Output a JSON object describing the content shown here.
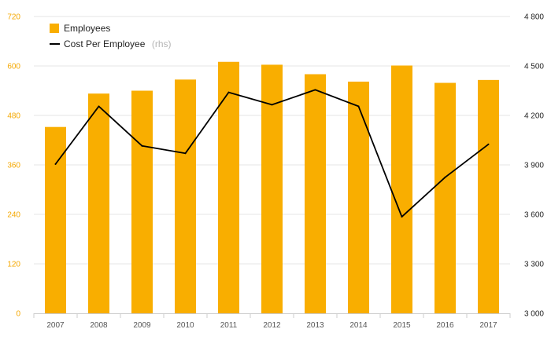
{
  "chart_data": {
    "type": "bar",
    "categories": [
      "2007",
      "2008",
      "2009",
      "2010",
      "2011",
      "2012",
      "2013",
      "2014",
      "2015",
      "2016",
      "2017"
    ],
    "series": [
      {
        "name": "Employees",
        "kind": "bar",
        "axis": "left",
        "color": "#f9ae00",
        "values": [
          452,
          533,
          540,
          567,
          610,
          603,
          580,
          562,
          601,
          559,
          566
        ]
      },
      {
        "name": "Cost Per Employee",
        "name_suffix": "(rhs)",
        "kind": "line",
        "axis": "right",
        "color": "#000000",
        "values": [
          3905,
          4255,
          4015,
          3970,
          4340,
          4265,
          4355,
          4255,
          3585,
          3825,
          4025
        ]
      }
    ],
    "y_left": {
      "range": [
        0,
        720
      ],
      "ticks": [
        "0",
        "120",
        "240",
        "360",
        "480",
        "600",
        "720"
      ]
    },
    "y_right": {
      "range": [
        3000,
        4800
      ],
      "ticks": [
        "3 000",
        "3 300",
        "3 600",
        "3 900",
        "4 200",
        "4 500",
        "4 800"
      ]
    },
    "grid": true,
    "legend_position": "top-left"
  }
}
